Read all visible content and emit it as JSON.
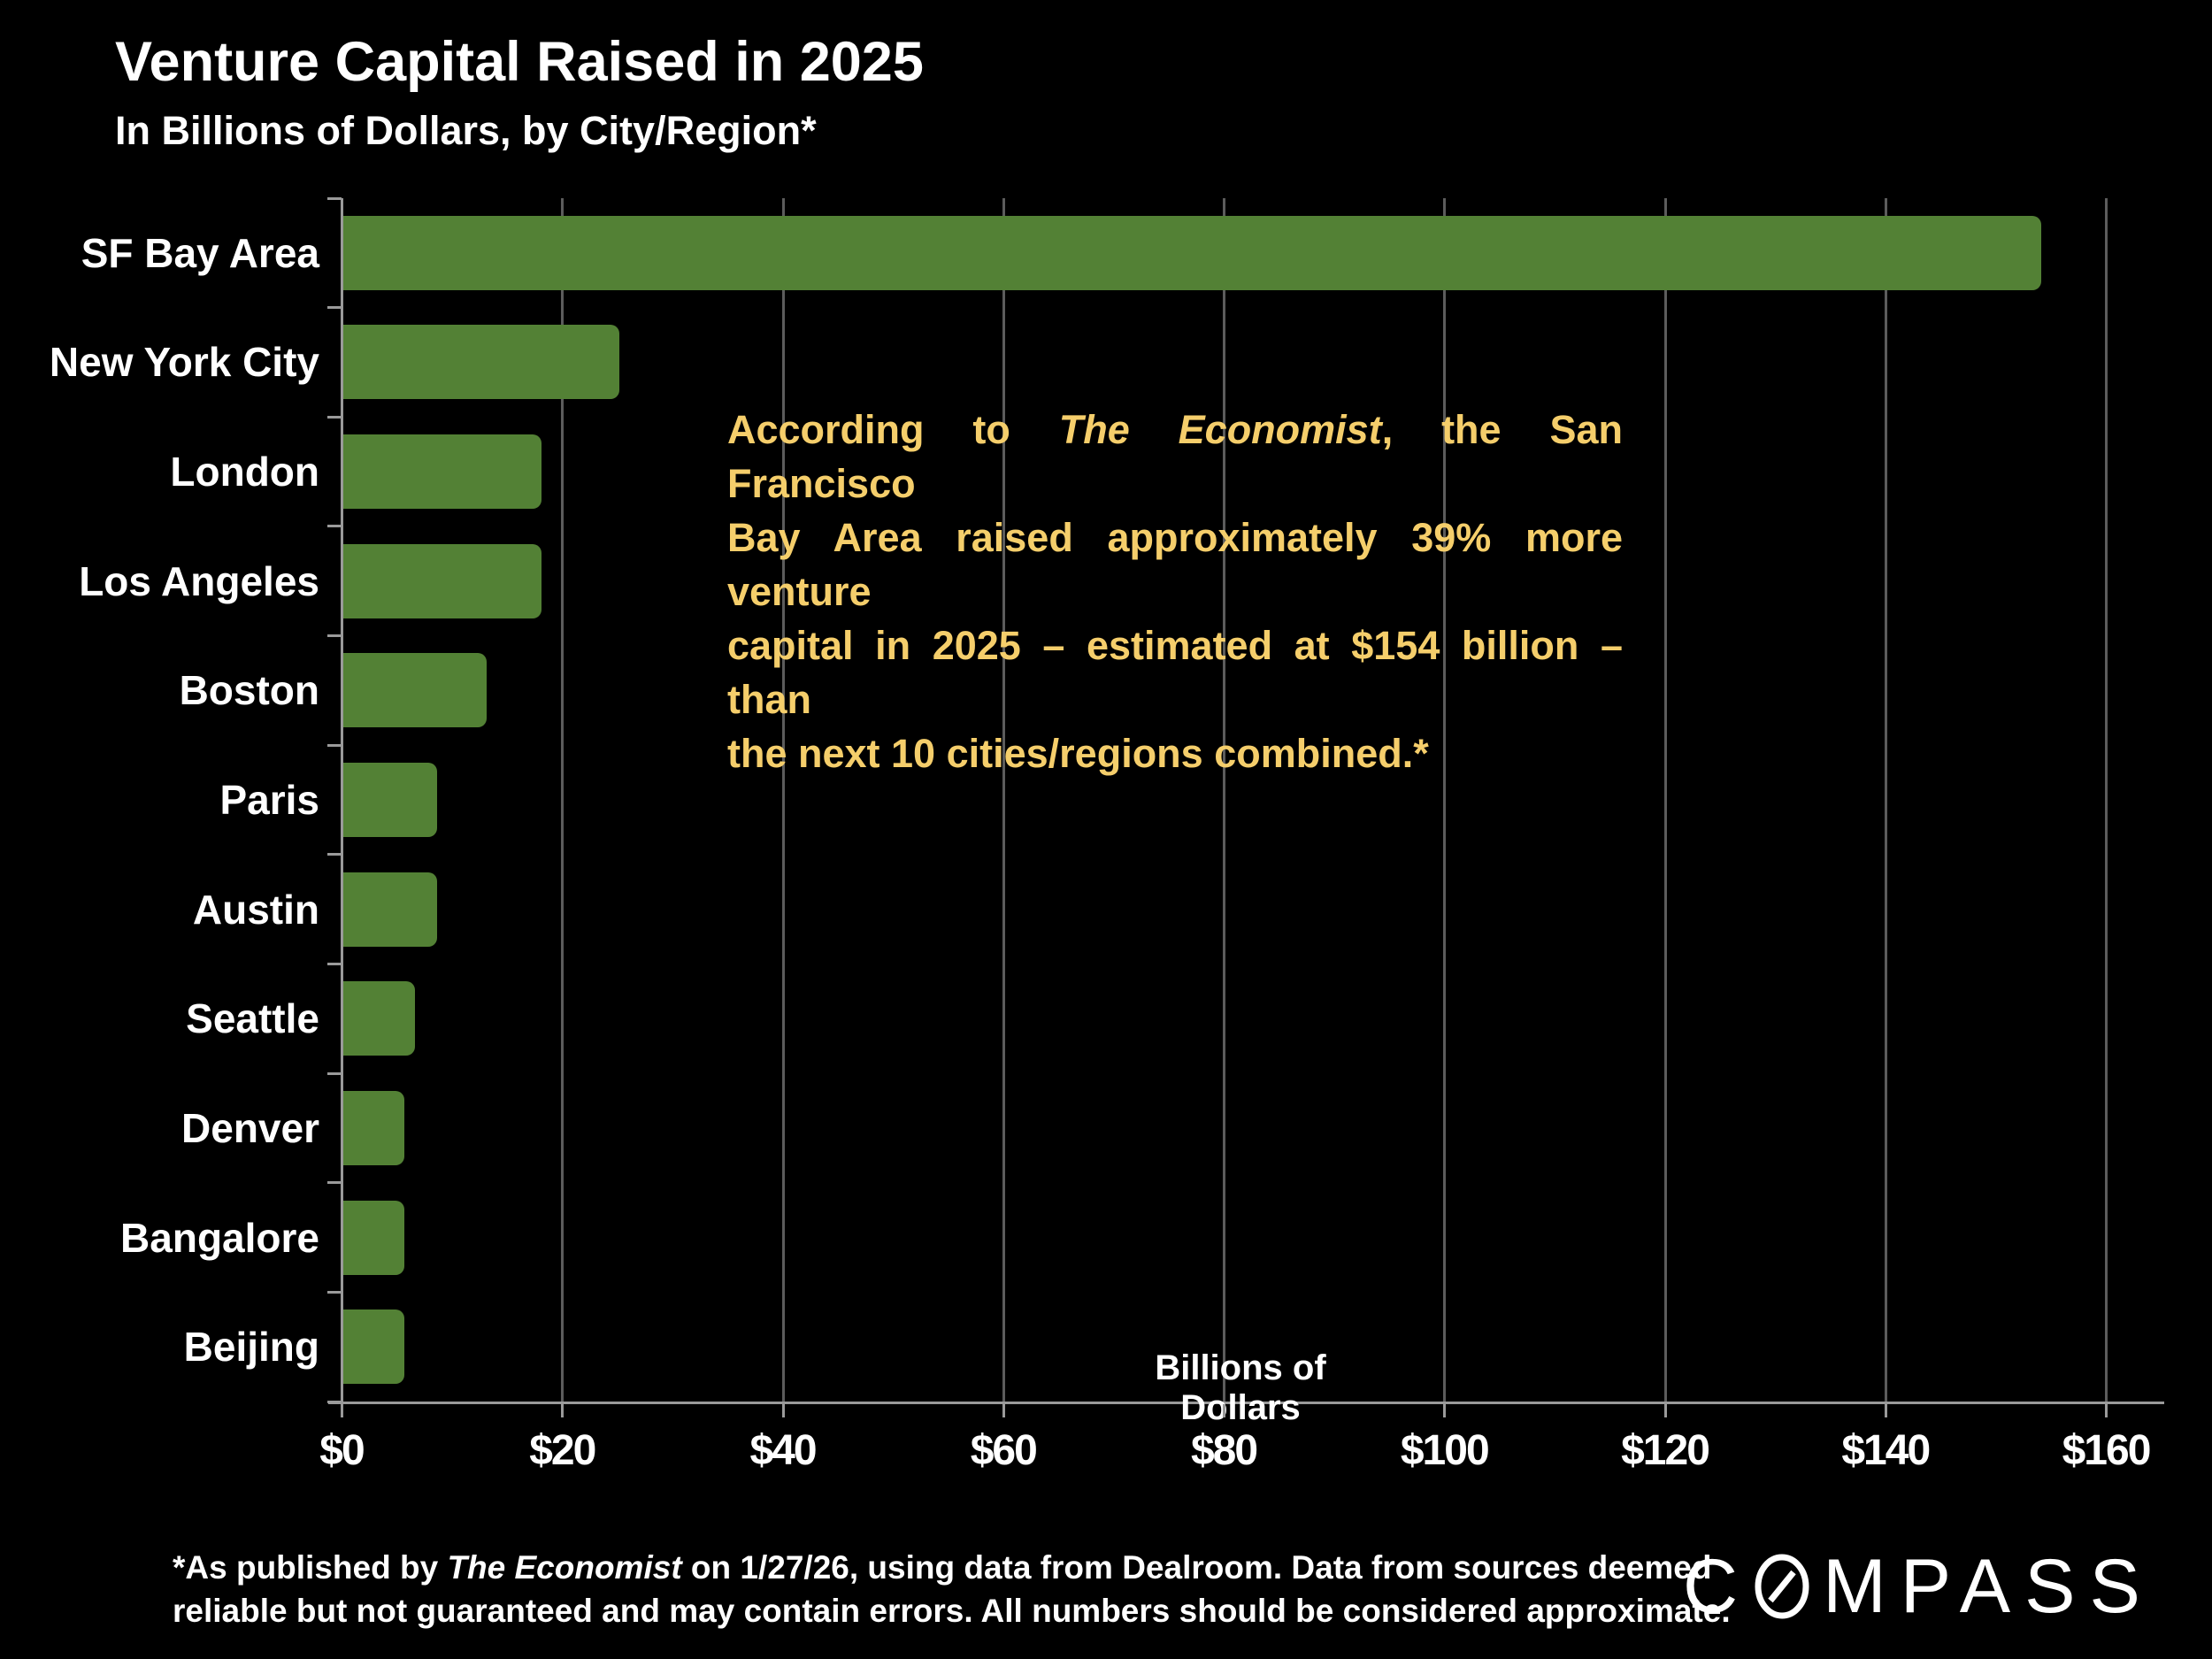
{
  "header": {
    "title": "Venture Capital Raised in 2025",
    "subtitle": "In Billions of Dollars, by City/Region*"
  },
  "chart_data": {
    "type": "bar",
    "orientation": "horizontal",
    "title": "Venture Capital Raised in 2025",
    "subtitle": "In Billions of Dollars, by City/Region*",
    "categories": [
      "SF Bay Area",
      "New York City",
      "London",
      "Los Angeles",
      "Boston",
      "Paris",
      "Austin",
      "Seattle",
      "Denver",
      "Bangalore",
      "Beijing"
    ],
    "values": [
      154,
      25,
      18,
      18,
      13,
      8.5,
      8.5,
      6.5,
      5.5,
      5.5,
      5.5
    ],
    "xlabel": "Billions of Dollars",
    "ylabel": "",
    "xlim": [
      0,
      160
    ],
    "x_tick_labels": [
      "$0",
      "$20",
      "$40",
      "$60",
      "$80",
      "$100",
      "$120",
      "$140",
      "$160"
    ],
    "x_tick_values": [
      0,
      20,
      40,
      60,
      80,
      100,
      120,
      140,
      160
    ],
    "grid": true,
    "legend": false,
    "bar_color": "#538135",
    "grid_color": "#5c5c5c",
    "axis_color": "#9a9a9a",
    "background_color": "#000000"
  },
  "callout": {
    "color": "#F5CE6B",
    "lines": [
      {
        "justify": true,
        "segments": [
          {
            "text": "According to ",
            "italic": false
          },
          {
            "text": "The Economist",
            "italic": true
          },
          {
            "text": ", the San Francisco",
            "italic": false
          }
        ]
      },
      {
        "justify": true,
        "segments": [
          {
            "text": "Bay Area raised approximately 39% more venture",
            "italic": false
          }
        ]
      },
      {
        "justify": true,
        "segments": [
          {
            "text": "capital in 2025 – estimated at $154 billion – than",
            "italic": false
          }
        ]
      },
      {
        "justify": false,
        "segments": [
          {
            "text": "the next 10 cities/regions combined.*",
            "italic": false
          }
        ]
      }
    ]
  },
  "footnote": {
    "lines": [
      {
        "segments": [
          {
            "text": "*As published by ",
            "italic": false
          },
          {
            "text": "The Economist",
            "italic": true
          },
          {
            "text": " on 1/27/26, using data from Dealroom. Data from sources deemed",
            "italic": false
          }
        ]
      },
      {
        "segments": [
          {
            "text": "reliable but not guaranteed and may contain errors. All numbers should be considered approximate.",
            "italic": false
          }
        ]
      }
    ]
  },
  "logo": {
    "brand": "COMPASS"
  }
}
